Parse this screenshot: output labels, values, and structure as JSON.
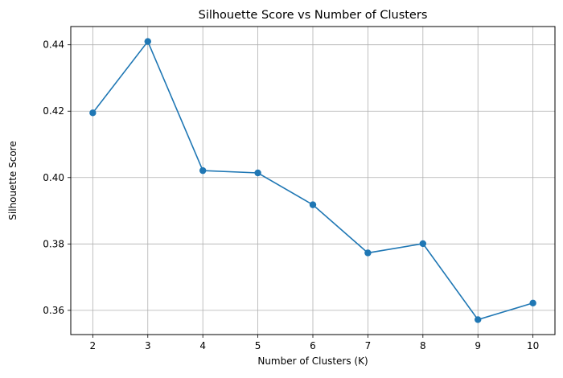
{
  "chart_data": {
    "type": "line",
    "title": "Silhouette Score vs Number of Clusters",
    "xlabel": "Number of Clusters (K)",
    "ylabel": "Silhouette Score",
    "x": [
      2,
      3,
      4,
      5,
      6,
      7,
      8,
      9,
      10
    ],
    "series": [
      {
        "values": [
          0.4195,
          0.441,
          0.4021,
          0.4014,
          0.3918,
          0.3773,
          0.3801,
          0.3572,
          0.3622
        ],
        "color": "#1f77b4",
        "marker": "circle"
      }
    ],
    "xlim": [
      1.6,
      10.4
    ],
    "ylim": [
      0.3527,
      0.4455
    ],
    "xticks": [
      "2",
      "3",
      "4",
      "5",
      "6",
      "7",
      "8",
      "9",
      "10"
    ],
    "yticks": [
      "0.36",
      "0.38",
      "0.40",
      "0.42",
      "0.44"
    ],
    "ytick_values": [
      0.36,
      0.38,
      0.4,
      0.42,
      0.44
    ],
    "grid": true,
    "colors": {
      "grid": "#b0b0b0",
      "axes": "#000000",
      "line": "#1f77b4"
    }
  }
}
